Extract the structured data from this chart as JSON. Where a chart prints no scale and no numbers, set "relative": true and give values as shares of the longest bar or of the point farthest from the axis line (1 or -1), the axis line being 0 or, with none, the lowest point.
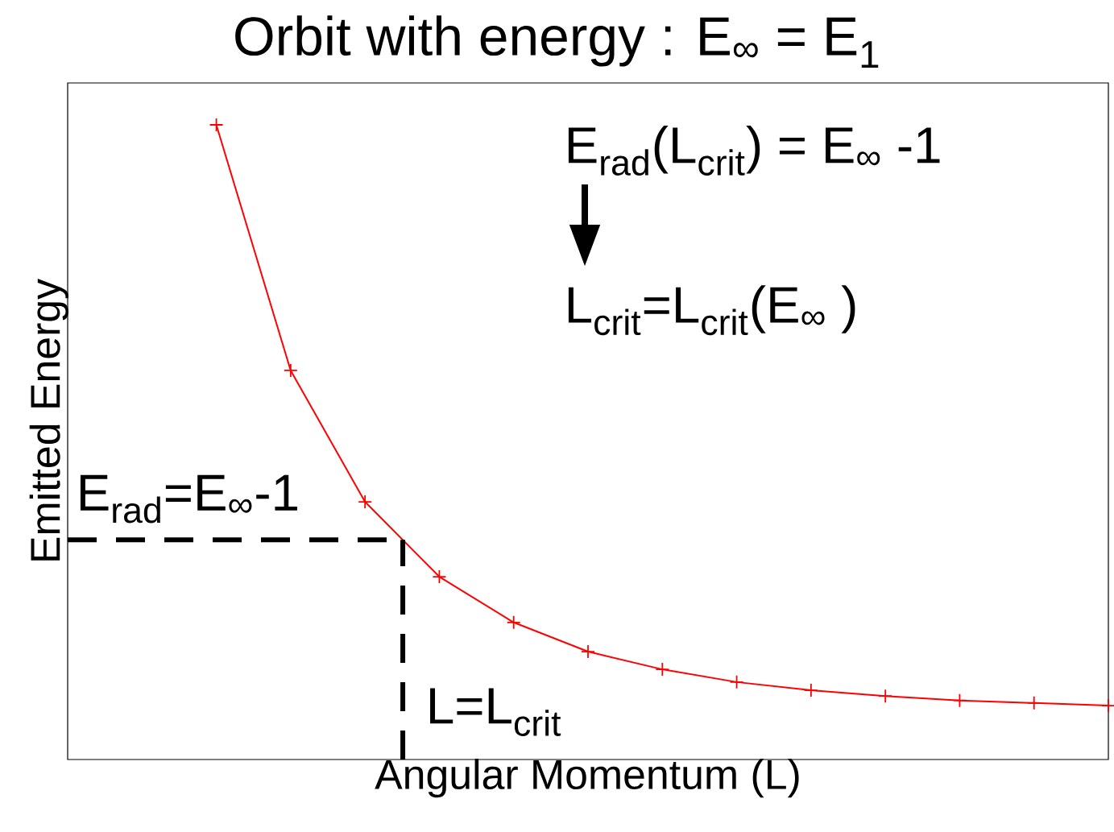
{
  "chart_data": {
    "type": "line",
    "title": "Orbit with energy : E$_{∞}$ = E$_{1}$",
    "xlabel": "Angular Momentum (L)",
    "ylabel": "Emitted Energy",
    "relative": true,
    "categories": [
      null,
      null,
      null,
      null,
      null,
      null,
      null,
      null,
      null,
      null,
      null,
      null,
      null
    ],
    "series": [
      {
        "color": "#ff0000",
        "values": [
          1,
          0.613,
          0.406,
          0.288,
          0.216,
          0.17,
          0.142,
          0.122,
          0.109,
          0.1,
          0.093,
          0.089,
          0.085
        ]
      }
    ],
    "marker": "cross",
    "line_style": "solid",
    "ref_lines": [
      {
        "axis": "y",
        "value": 0.346,
        "label": "E$_{rad}$=E$_{∞}$-1",
        "color": "#000000",
        "line_style": "dashed"
      }
    ],
    "annotations": [
      "E$_{rad}$(L$_{crit}$) = E$_{∞}$ -1",
      "L$_{crit}$=L$_{crit}$(E$_{∞}$ )",
      "L=L$_{crit}$"
    ]
  }
}
